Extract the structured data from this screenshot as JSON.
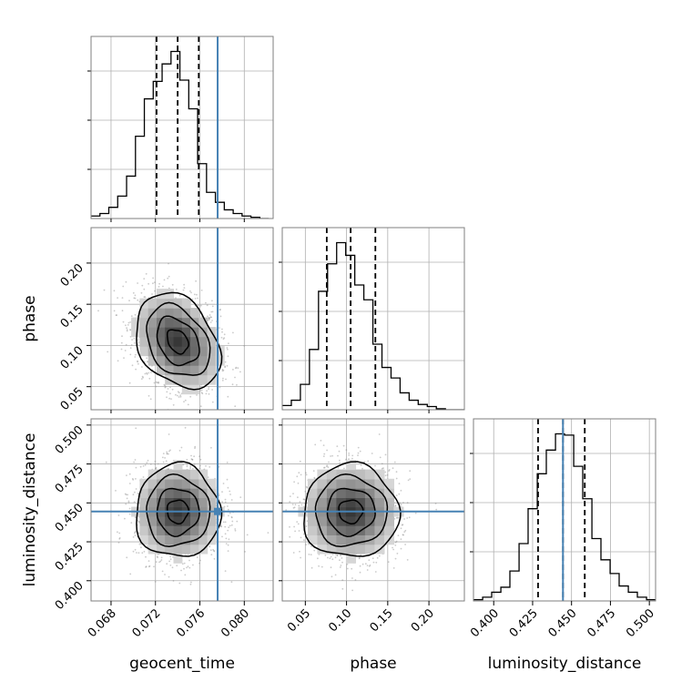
{
  "chart_data": {
    "type": "corner",
    "parameters": [
      "geocent_time",
      "phase",
      "luminosity_distance"
    ],
    "ranges": {
      "geocent_time": [
        0.0662,
        0.0826
      ],
      "phase": [
        0.022,
        0.243
      ],
      "luminosity_distance": [
        0.387,
        0.504
      ]
    },
    "ticks": {
      "geocent_time": [
        "0.068",
        "0.072",
        "0.076",
        "0.080"
      ],
      "phase": [
        "0.05",
        "0.10",
        "0.15",
        "0.20"
      ],
      "luminosity_distance": [
        "0.400",
        "0.425",
        "0.450",
        "0.475",
        "0.500"
      ]
    },
    "injection": {
      "geocent_time": 0.0776,
      "phase": null,
      "luminosity_distance": 0.4445
    },
    "quantiles": {
      "geocent_time": [
        0.0721,
        0.074,
        0.0759
      ],
      "phase": [
        0.076,
        0.105,
        0.135
      ],
      "luminosity_distance": [
        0.4285,
        0.4445,
        0.4585
      ]
    },
    "histograms": {
      "geocent_time": {
        "edges": [
          0.0662,
          0.067,
          0.0678,
          0.0686,
          0.0694,
          0.0702,
          0.071,
          0.0718,
          0.0726,
          0.0734,
          0.0742,
          0.075,
          0.0758,
          0.0766,
          0.0774,
          0.0782,
          0.079,
          0.0798,
          0.0806,
          0.0814,
          0.0822
        ],
        "counts": [
          2,
          4,
          9,
          18,
          34,
          66,
          96,
          110,
          124,
          134,
          111,
          88,
          44,
          21,
          13,
          7,
          4,
          2,
          1,
          0
        ]
      },
      "phase": {
        "edges": [
          0.022,
          0.033,
          0.044,
          0.055,
          0.066,
          0.077,
          0.088,
          0.099,
          0.11,
          0.121,
          0.132,
          0.143,
          0.154,
          0.165,
          0.176,
          0.187,
          0.198,
          0.209,
          0.22,
          0.231,
          0.243
        ],
        "counts": [
          4,
          9,
          24,
          57,
          112,
          138,
          158,
          146,
          118,
          104,
          62,
          40,
          30,
          16,
          9,
          5,
          3,
          1,
          0,
          0
        ]
      },
      "luminosity_distance": {
        "edges": [
          0.387,
          0.3929,
          0.3987,
          0.4046,
          0.4104,
          0.4163,
          0.4221,
          0.428,
          0.4338,
          0.4397,
          0.4455,
          0.4514,
          0.4572,
          0.4631,
          0.4689,
          0.4748,
          0.4806,
          0.4865,
          0.4923,
          0.4982,
          0.504
        ],
        "counts": [
          1,
          3,
          7,
          11,
          24,
          46,
          74,
          102,
          121,
          134,
          133,
          108,
          82,
          50,
          33,
          22,
          12,
          7,
          3,
          1
        ]
      }
    },
    "posterior_2d": [
      {
        "x": "geocent_time",
        "y": "phase",
        "mean": [
          0.074,
          0.105
        ],
        "sd": [
          0.0019,
          0.029
        ],
        "rho": -0.3
      },
      {
        "x": "geocent_time",
        "y": "luminosity_distance",
        "mean": [
          0.074,
          0.4445
        ],
        "sd": [
          0.0019,
          0.015
        ],
        "rho": 0
      },
      {
        "x": "phase",
        "y": "luminosity_distance",
        "mean": [
          0.105,
          0.4445
        ],
        "sd": [
          0.029,
          0.015
        ],
        "rho": 0
      }
    ],
    "grid": true,
    "colors": {
      "hist": "#000000",
      "quantile": "#000000",
      "injection": "#4682b4",
      "grid": "#b0b0b0",
      "scatter": "#8c8c8c"
    }
  }
}
